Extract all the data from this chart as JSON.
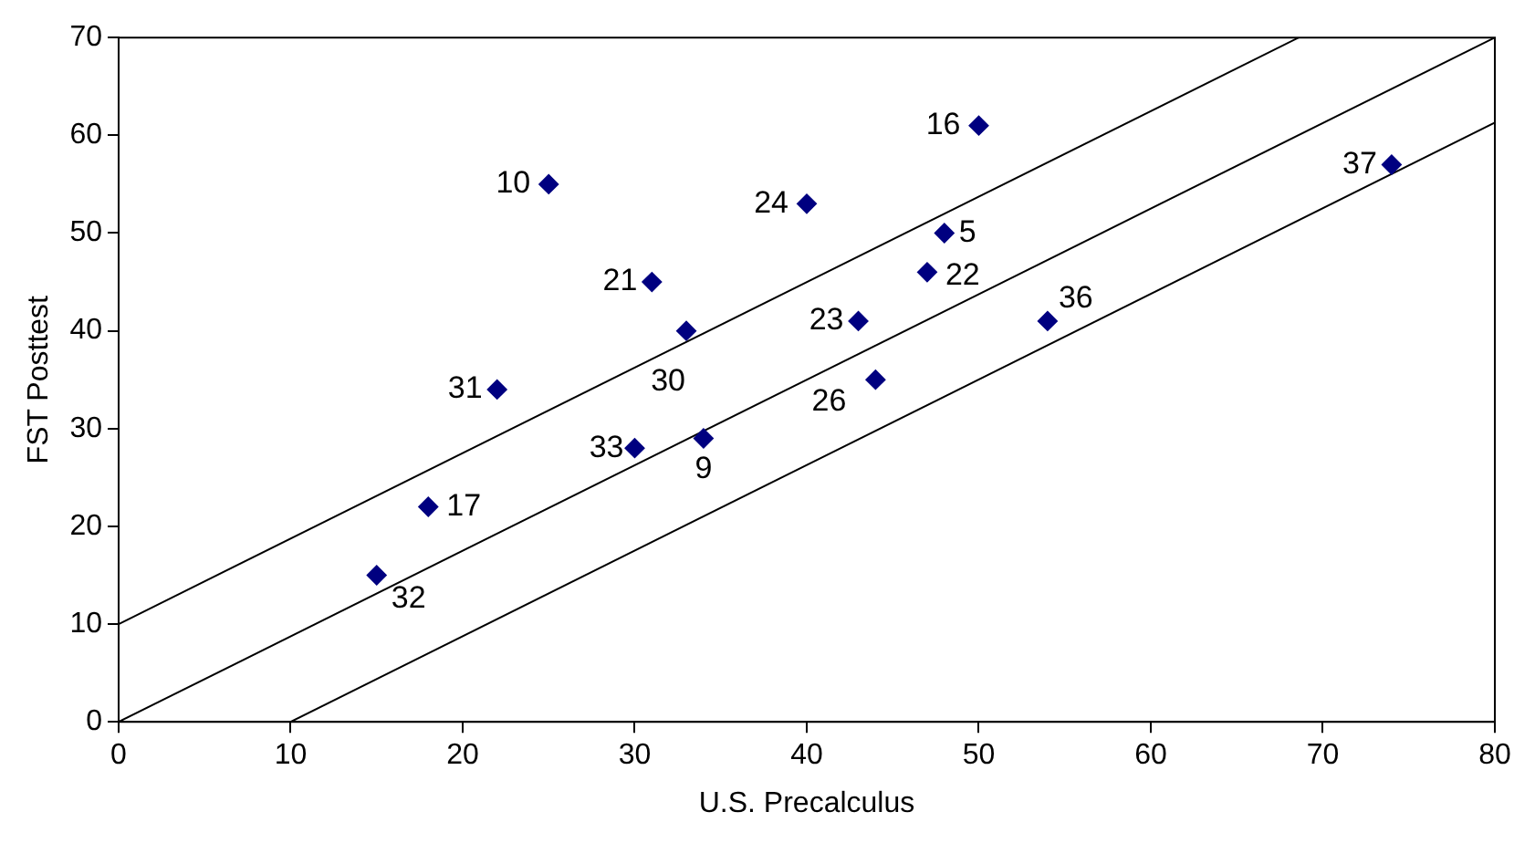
{
  "chart_data": {
    "type": "scatter",
    "xlabel": "U.S. Precalculus",
    "ylabel": "FST Posttest",
    "xlim": [
      0,
      80
    ],
    "xticks": [
      0,
      10,
      20,
      30,
      40,
      50,
      60,
      70,
      80
    ],
    "ylim": [
      0,
      70
    ],
    "yticks": [
      0,
      10,
      20,
      30,
      40,
      50,
      60,
      70
    ],
    "grid": false,
    "legend": false,
    "marker": "diamond",
    "series": [
      {
        "type": "scatter",
        "color": "#000080",
        "x": [
          25,
          50,
          40,
          48,
          47,
          31,
          33,
          43,
          54,
          74,
          22,
          44,
          30,
          34,
          18,
          15
        ],
        "values": [
          55,
          61,
          53,
          50,
          46,
          45,
          40,
          41,
          41,
          57,
          34,
          35,
          28,
          29,
          22,
          15
        ]
      },
      {
        "type": "line",
        "color": "#000000",
        "marker": "none",
        "x": [
          0,
          68.6
        ],
        "values": [
          10,
          70
        ]
      },
      {
        "type": "line",
        "color": "#000000",
        "marker": "none",
        "x": [
          0,
          80
        ],
        "values": [
          0,
          70
        ]
      },
      {
        "type": "line",
        "color": "#000000",
        "marker": "none",
        "x": [
          10,
          80
        ],
        "values": [
          0,
          61.3
        ]
      }
    ],
    "annotations": [
      {
        "text": "10",
        "x": 25,
        "y": 55
      },
      {
        "text": "16",
        "x": 50,
        "y": 61
      },
      {
        "text": "24",
        "x": 40,
        "y": 53
      },
      {
        "text": "5",
        "x": 48,
        "y": 50
      },
      {
        "text": "22",
        "x": 47,
        "y": 46
      },
      {
        "text": "21",
        "x": 31,
        "y": 45
      },
      {
        "text": "30",
        "x": 33,
        "y": 40
      },
      {
        "text": "23",
        "x": 43,
        "y": 41
      },
      {
        "text": "36",
        "x": 54,
        "y": 41
      },
      {
        "text": "37",
        "x": 74,
        "y": 57
      },
      {
        "text": "31",
        "x": 22,
        "y": 34
      },
      {
        "text": "26",
        "x": 44,
        "y": 35
      },
      {
        "text": "33",
        "x": 30,
        "y": 28
      },
      {
        "text": "9",
        "x": 34,
        "y": 29
      },
      {
        "text": "17",
        "x": 18,
        "y": 22
      },
      {
        "text": "32",
        "x": 15,
        "y": 15
      }
    ]
  }
}
